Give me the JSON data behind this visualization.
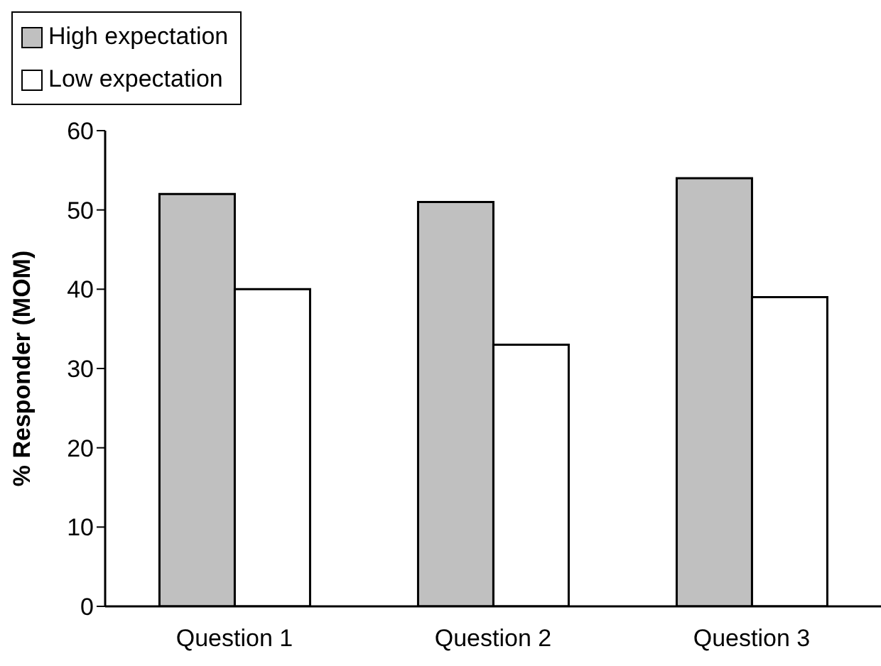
{
  "chart_data": {
    "type": "bar",
    "ylabel": "% Responder (MOM)",
    "categories": [
      "Question 1",
      "Question 2",
      "Question 3"
    ],
    "series": [
      {
        "name": "High expectation",
        "color": "#c0c0c0",
        "values": [
          52,
          51,
          54
        ]
      },
      {
        "name": "Low expectation",
        "color": "#ffffff",
        "values": [
          40,
          33,
          39
        ]
      }
    ],
    "ylim": [
      0,
      60
    ],
    "yticks": [
      0,
      10,
      20,
      30,
      40,
      50,
      60
    ],
    "grid": false,
    "legend": "top"
  }
}
